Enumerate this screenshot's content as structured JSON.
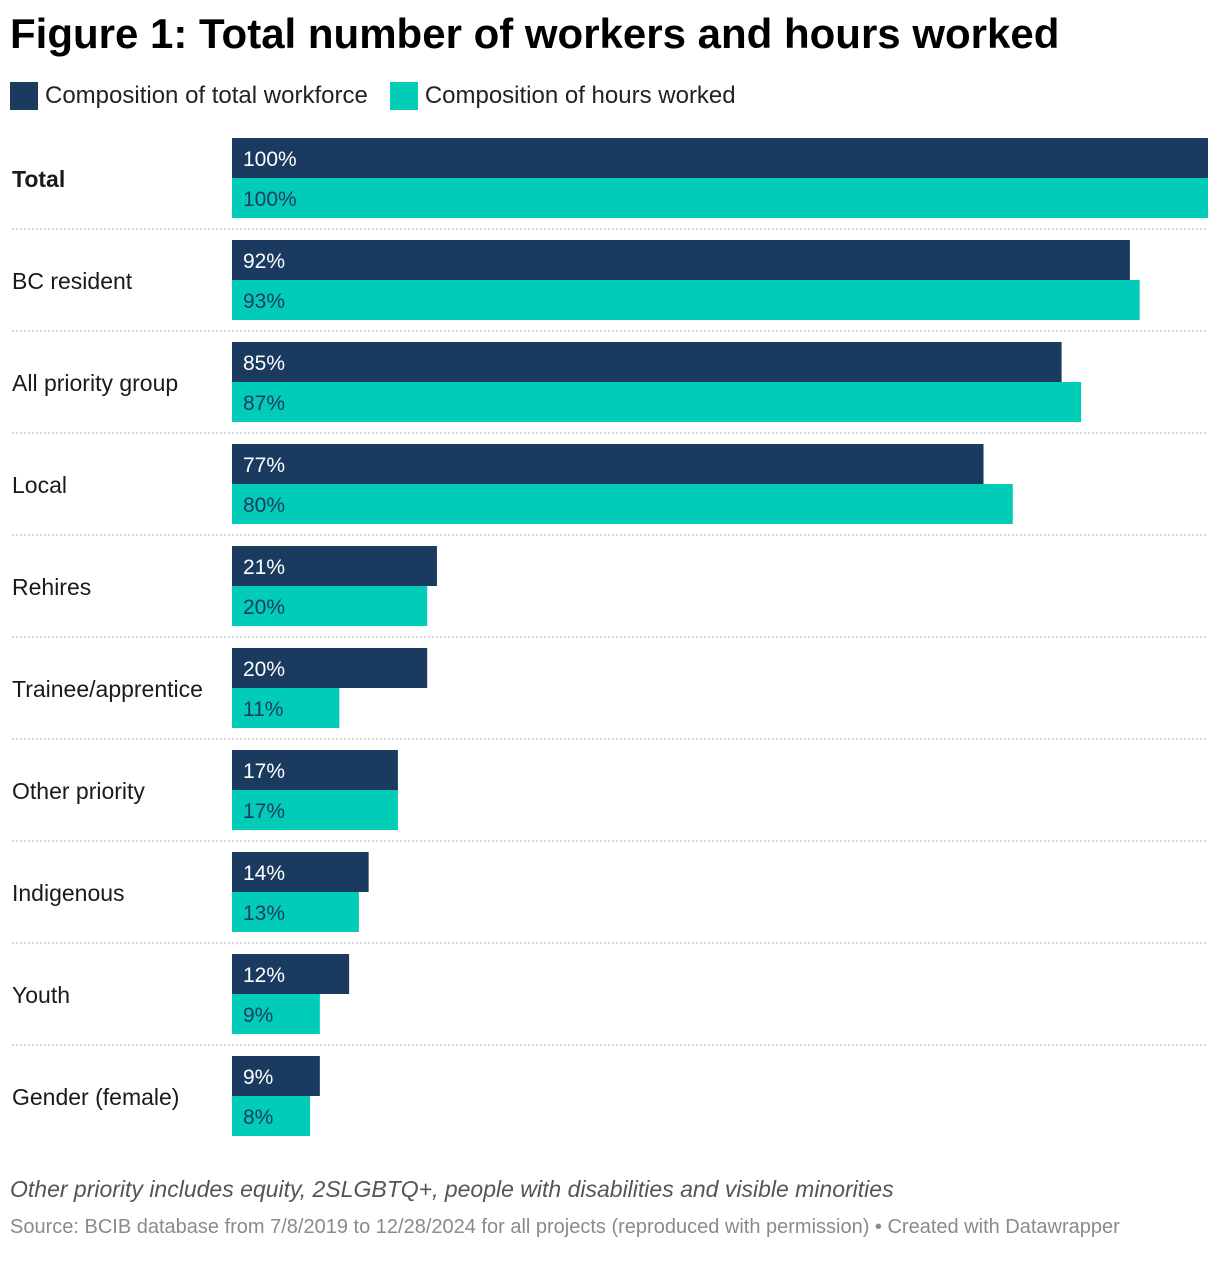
{
  "title": "Figure 1: Total number of workers and hours worked",
  "notes": "Other priority includes equity, 2SLGBTQ+, people with disabilities and visible minorities",
  "source": "Source: BCIB database from 7/8/2019 to 12/28/2024 for all projects (reproduced with permission) • Created with Datawrapper",
  "colors": {
    "workforce": "#1a3b5f",
    "hours": "#00ccb8",
    "divider": "#cccccc"
  },
  "chart_data": {
    "type": "bar",
    "orientation": "horizontal",
    "title": "Figure 1: Total number of workers and hours worked",
    "unit": "%",
    "xlim": [
      0,
      100
    ],
    "grid": false,
    "legend_position": "top-left",
    "categories": [
      "Total",
      "BC resident",
      "All priority group",
      "Local",
      "Rehires",
      "Trainee/apprentice",
      "Other priority",
      "Indigenous",
      "Youth",
      "Gender (female)"
    ],
    "series": [
      {
        "name": "Composition of total workforce",
        "values": [
          100,
          92,
          85,
          77,
          21,
          20,
          17,
          14,
          12,
          9
        ]
      },
      {
        "name": "Composition of hours worked",
        "values": [
          100,
          93,
          87,
          80,
          20,
          11,
          17,
          13,
          9,
          8
        ]
      }
    ]
  }
}
